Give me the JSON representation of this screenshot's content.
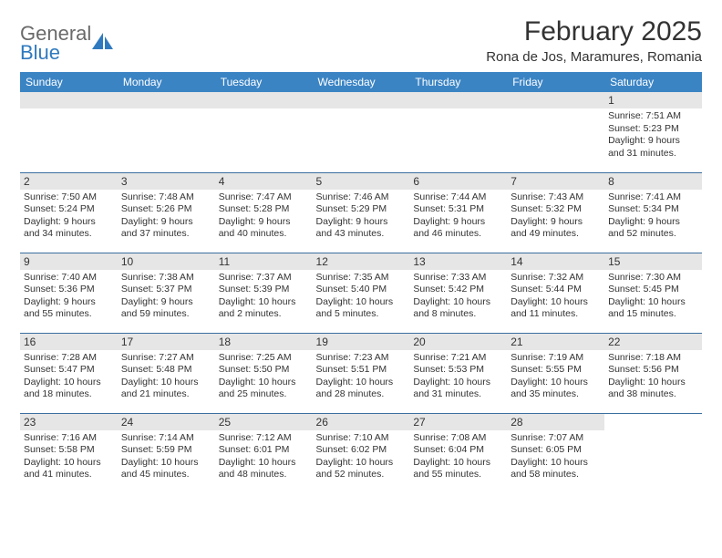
{
  "brand": {
    "line1": "General",
    "line2": "Blue",
    "icon_color": "#2f7abf"
  },
  "header": {
    "title": "February 2025",
    "location": "Rona de Jos, Maramures, Romania"
  },
  "colors": {
    "header_bg": "#3b84c4",
    "header_text": "#ffffff",
    "daynum_bg": "#e6e6e6",
    "border": "#3b6fa0",
    "text": "#333333"
  },
  "weekdays": [
    "Sunday",
    "Monday",
    "Tuesday",
    "Wednesday",
    "Thursday",
    "Friday",
    "Saturday"
  ],
  "weeks": [
    [
      null,
      null,
      null,
      null,
      null,
      null,
      {
        "n": "1",
        "l1": "Sunrise: 7:51 AM",
        "l2": "Sunset: 5:23 PM",
        "l3": "Daylight: 9 hours",
        "l4": "and 31 minutes."
      }
    ],
    [
      {
        "n": "2",
        "l1": "Sunrise: 7:50 AM",
        "l2": "Sunset: 5:24 PM",
        "l3": "Daylight: 9 hours",
        "l4": "and 34 minutes."
      },
      {
        "n": "3",
        "l1": "Sunrise: 7:48 AM",
        "l2": "Sunset: 5:26 PM",
        "l3": "Daylight: 9 hours",
        "l4": "and 37 minutes."
      },
      {
        "n": "4",
        "l1": "Sunrise: 7:47 AM",
        "l2": "Sunset: 5:28 PM",
        "l3": "Daylight: 9 hours",
        "l4": "and 40 minutes."
      },
      {
        "n": "5",
        "l1": "Sunrise: 7:46 AM",
        "l2": "Sunset: 5:29 PM",
        "l3": "Daylight: 9 hours",
        "l4": "and 43 minutes."
      },
      {
        "n": "6",
        "l1": "Sunrise: 7:44 AM",
        "l2": "Sunset: 5:31 PM",
        "l3": "Daylight: 9 hours",
        "l4": "and 46 minutes."
      },
      {
        "n": "7",
        "l1": "Sunrise: 7:43 AM",
        "l2": "Sunset: 5:32 PM",
        "l3": "Daylight: 9 hours",
        "l4": "and 49 minutes."
      },
      {
        "n": "8",
        "l1": "Sunrise: 7:41 AM",
        "l2": "Sunset: 5:34 PM",
        "l3": "Daylight: 9 hours",
        "l4": "and 52 minutes."
      }
    ],
    [
      {
        "n": "9",
        "l1": "Sunrise: 7:40 AM",
        "l2": "Sunset: 5:36 PM",
        "l3": "Daylight: 9 hours",
        "l4": "and 55 minutes."
      },
      {
        "n": "10",
        "l1": "Sunrise: 7:38 AM",
        "l2": "Sunset: 5:37 PM",
        "l3": "Daylight: 9 hours",
        "l4": "and 59 minutes."
      },
      {
        "n": "11",
        "l1": "Sunrise: 7:37 AM",
        "l2": "Sunset: 5:39 PM",
        "l3": "Daylight: 10 hours",
        "l4": "and 2 minutes."
      },
      {
        "n": "12",
        "l1": "Sunrise: 7:35 AM",
        "l2": "Sunset: 5:40 PM",
        "l3": "Daylight: 10 hours",
        "l4": "and 5 minutes."
      },
      {
        "n": "13",
        "l1": "Sunrise: 7:33 AM",
        "l2": "Sunset: 5:42 PM",
        "l3": "Daylight: 10 hours",
        "l4": "and 8 minutes."
      },
      {
        "n": "14",
        "l1": "Sunrise: 7:32 AM",
        "l2": "Sunset: 5:44 PM",
        "l3": "Daylight: 10 hours",
        "l4": "and 11 minutes."
      },
      {
        "n": "15",
        "l1": "Sunrise: 7:30 AM",
        "l2": "Sunset: 5:45 PM",
        "l3": "Daylight: 10 hours",
        "l4": "and 15 minutes."
      }
    ],
    [
      {
        "n": "16",
        "l1": "Sunrise: 7:28 AM",
        "l2": "Sunset: 5:47 PM",
        "l3": "Daylight: 10 hours",
        "l4": "and 18 minutes."
      },
      {
        "n": "17",
        "l1": "Sunrise: 7:27 AM",
        "l2": "Sunset: 5:48 PM",
        "l3": "Daylight: 10 hours",
        "l4": "and 21 minutes."
      },
      {
        "n": "18",
        "l1": "Sunrise: 7:25 AM",
        "l2": "Sunset: 5:50 PM",
        "l3": "Daylight: 10 hours",
        "l4": "and 25 minutes."
      },
      {
        "n": "19",
        "l1": "Sunrise: 7:23 AM",
        "l2": "Sunset: 5:51 PM",
        "l3": "Daylight: 10 hours",
        "l4": "and 28 minutes."
      },
      {
        "n": "20",
        "l1": "Sunrise: 7:21 AM",
        "l2": "Sunset: 5:53 PM",
        "l3": "Daylight: 10 hours",
        "l4": "and 31 minutes."
      },
      {
        "n": "21",
        "l1": "Sunrise: 7:19 AM",
        "l2": "Sunset: 5:55 PM",
        "l3": "Daylight: 10 hours",
        "l4": "and 35 minutes."
      },
      {
        "n": "22",
        "l1": "Sunrise: 7:18 AM",
        "l2": "Sunset: 5:56 PM",
        "l3": "Daylight: 10 hours",
        "l4": "and 38 minutes."
      }
    ],
    [
      {
        "n": "23",
        "l1": "Sunrise: 7:16 AM",
        "l2": "Sunset: 5:58 PM",
        "l3": "Daylight: 10 hours",
        "l4": "and 41 minutes."
      },
      {
        "n": "24",
        "l1": "Sunrise: 7:14 AM",
        "l2": "Sunset: 5:59 PM",
        "l3": "Daylight: 10 hours",
        "l4": "and 45 minutes."
      },
      {
        "n": "25",
        "l1": "Sunrise: 7:12 AM",
        "l2": "Sunset: 6:01 PM",
        "l3": "Daylight: 10 hours",
        "l4": "and 48 minutes."
      },
      {
        "n": "26",
        "l1": "Sunrise: 7:10 AM",
        "l2": "Sunset: 6:02 PM",
        "l3": "Daylight: 10 hours",
        "l4": "and 52 minutes."
      },
      {
        "n": "27",
        "l1": "Sunrise: 7:08 AM",
        "l2": "Sunset: 6:04 PM",
        "l3": "Daylight: 10 hours",
        "l4": "and 55 minutes."
      },
      {
        "n": "28",
        "l1": "Sunrise: 7:07 AM",
        "l2": "Sunset: 6:05 PM",
        "l3": "Daylight: 10 hours",
        "l4": "and 58 minutes."
      },
      null
    ]
  ]
}
